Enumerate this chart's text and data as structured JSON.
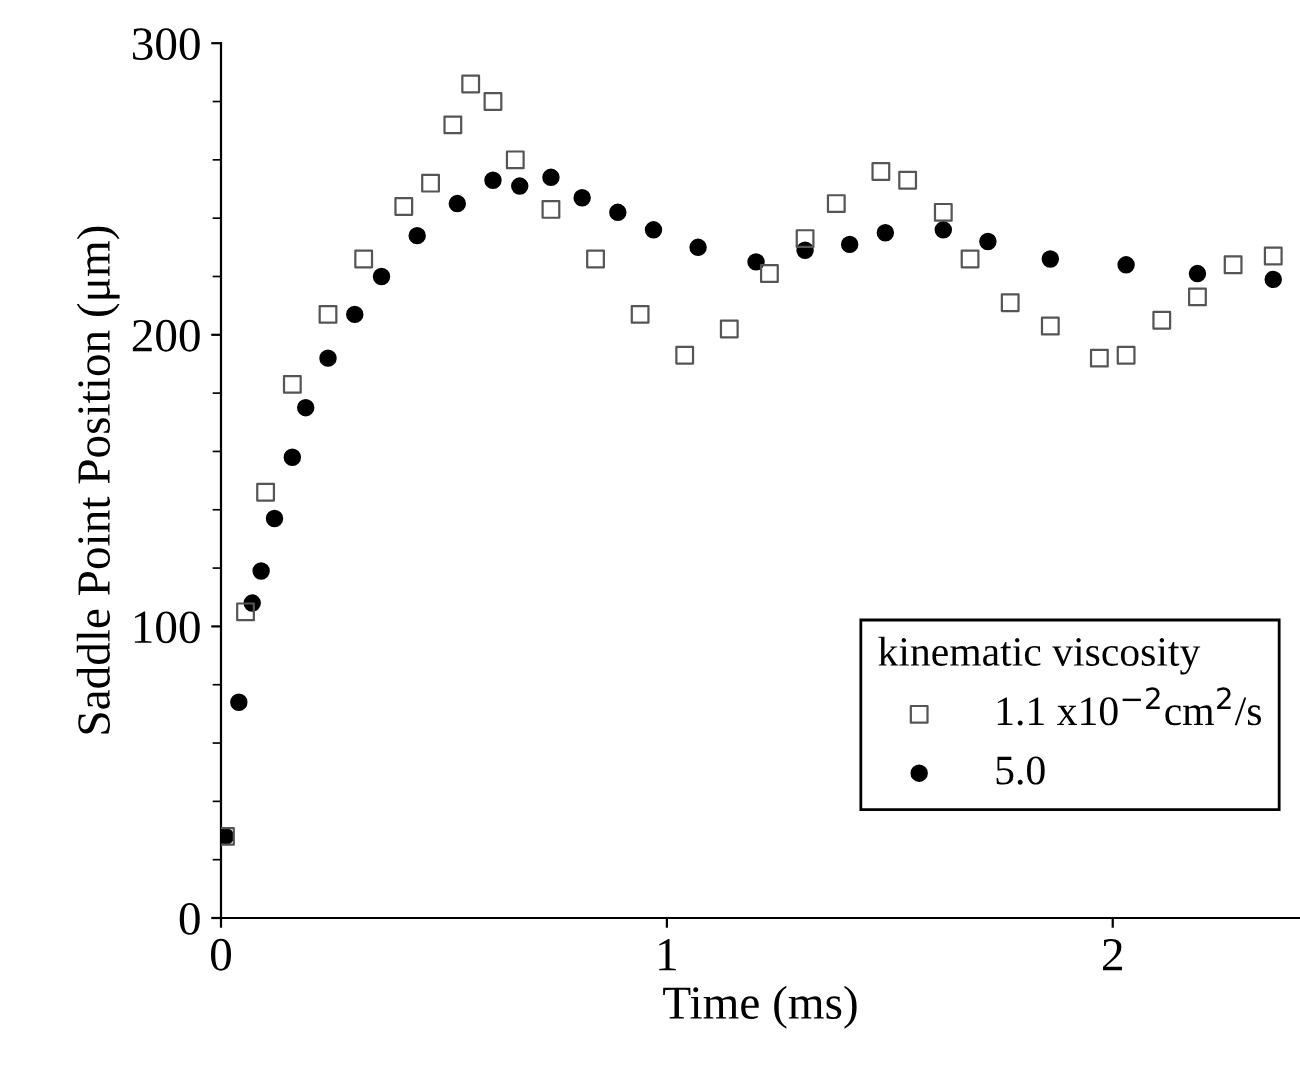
{
  "chart_data": {
    "type": "scatter",
    "xlabel": "Time (ms)",
    "ylabel": "Saddle Point Position (μm)",
    "legend_title": "kinematic viscosity",
    "legend": "bottom right",
    "xlim": [
      0,
      2.42
    ],
    "xticks": [
      0,
      1,
      2
    ],
    "ylim": [
      0,
      300
    ],
    "yticks": [
      0,
      100,
      200,
      300
    ],
    "grid": false,
    "series": [
      {
        "name": "1.1 x10$^{−2}$cm$^{2}$/s",
        "color": "#555555",
        "marker": "square",
        "x": [
          0.01,
          0.055,
          0.1,
          0.16,
          0.24,
          0.32,
          0.41,
          0.47,
          0.52,
          0.56,
          0.61,
          0.66,
          0.74,
          0.84,
          0.94,
          1.04,
          1.14,
          1.23,
          1.31,
          1.38,
          1.48,
          1.54,
          1.62,
          1.68,
          1.77,
          1.86,
          1.97,
          2.03,
          2.11,
          2.19,
          2.27,
          2.36
        ],
        "values": [
          28,
          105,
          146,
          183,
          207,
          226,
          244,
          252,
          272,
          286,
          280,
          260,
          243,
          226,
          207,
          193,
          202,
          221,
          233,
          245,
          256,
          253,
          242,
          226,
          211,
          203,
          192,
          193,
          205,
          213,
          224,
          227
        ]
      },
      {
        "name": "5.0",
        "color": "#000000",
        "marker": "circle",
        "x": [
          0.01,
          0.04,
          0.07,
          0.09,
          0.12,
          0.16,
          0.19,
          0.24,
          0.3,
          0.36,
          0.44,
          0.53,
          0.61,
          0.67,
          0.74,
          0.81,
          0.89,
          0.97,
          1.07,
          1.2,
          1.31,
          1.41,
          1.49,
          1.62,
          1.72,
          1.86,
          2.03,
          2.19,
          2.36
        ],
        "values": [
          28,
          74,
          108,
          119,
          137,
          158,
          175,
          192,
          207,
          220,
          234,
          245,
          253,
          251,
          254,
          247,
          242,
          236,
          230,
          225,
          229,
          231,
          235,
          236,
          232,
          226,
          224,
          221,
          219
        ]
      }
    ]
  }
}
